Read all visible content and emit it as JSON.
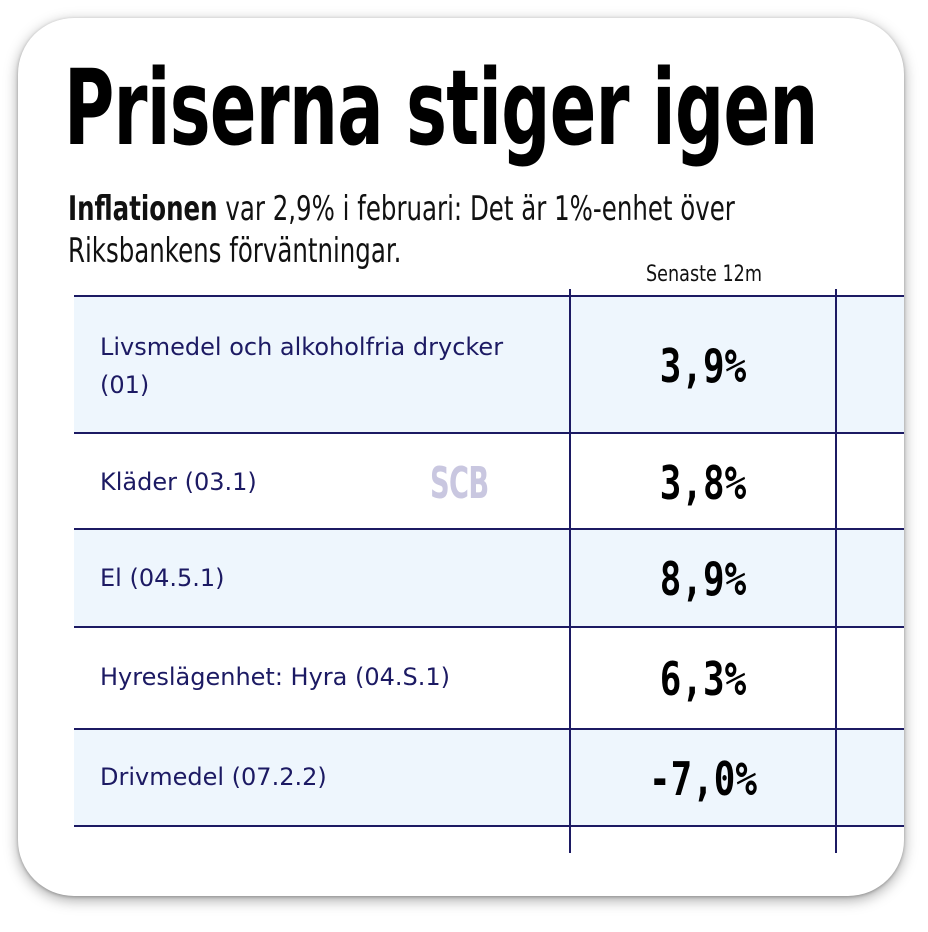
{
  "title": "Priserna stiger igen",
  "subtitle": {
    "lead": "Inflationen",
    "rest": " var 2,9% i februari: Det är 1%-enhet över Riksbankens förväntningar."
  },
  "table": {
    "column_header": "Senaste 12m",
    "rows": [
      {
        "label": "Livsmedel och alkoholfria drycker (01)",
        "value": "3,9%"
      },
      {
        "label": "Kläder (03.1)",
        "value": "3,8%"
      },
      {
        "label": "El (04.5.1)",
        "value": "8,9%"
      },
      {
        "label": "Hyreslägenhet: Hyra (04.S.1)",
        "value": "6,3%"
      },
      {
        "label": "Drivmedel (07.2.2)",
        "value": "-7,0%"
      }
    ]
  },
  "watermark": "SCB",
  "colors": {
    "text_navy": "#1c1a63",
    "row_shade": "#eef6fd",
    "watermark": "#c9c7e0"
  }
}
